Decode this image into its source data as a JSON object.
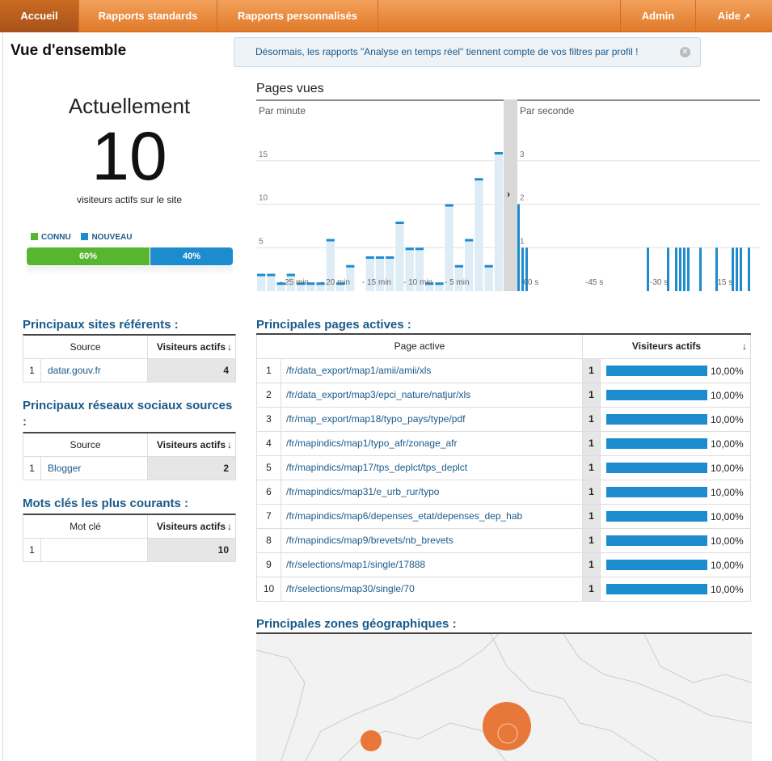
{
  "nav": {
    "home": "Accueil",
    "standard_reports": "Rapports standards",
    "custom_reports": "Rapports personnalisés",
    "admin": "Admin",
    "help": "Aide"
  },
  "page_title": "Vue d'ensemble",
  "notice": "Désormais, les rapports \"Analyse en temps réel\" tiennent compte de vos filtres par profil !",
  "realtime": {
    "title": "Actuellement",
    "count": "10",
    "subtitle": "visiteurs actifs sur le site",
    "legend_known": "CONNU",
    "legend_new": "NOUVEAU",
    "known_pct": "60%",
    "new_pct": "40%",
    "known_fraction": 0.6,
    "colors": {
      "known": "#58b530",
      "new": "#1d8ccf"
    }
  },
  "pageviews": {
    "title": "Pages vues",
    "per_minute_label": "Par minute",
    "per_second_label": "Par seconde"
  },
  "chart_data": [
    {
      "type": "bar",
      "title": "Par minute",
      "yticks": [
        "5",
        "10",
        "15"
      ],
      "ylim": [
        0,
        20
      ],
      "xticks": [
        "- 25 min",
        "- 20 min",
        "- 15 min",
        "- 10 min",
        "- 5 min"
      ],
      "values": [
        2,
        2,
        1,
        2,
        1,
        1,
        1,
        6,
        1,
        3,
        0,
        4,
        4,
        4,
        8,
        5,
        5,
        1,
        1,
        10,
        3,
        6,
        13,
        3,
        16
      ],
      "color": "#1d8ccf"
    },
    {
      "type": "bar",
      "title": "Par seconde",
      "yticks": [
        "1",
        "2",
        "3"
      ],
      "ylim": [
        0,
        4
      ],
      "xticks": [
        "-60 s",
        "-45 s",
        "-30 s",
        "-15 s"
      ],
      "values": [
        2,
        1,
        1,
        0,
        0,
        0,
        0,
        0,
        0,
        0,
        0,
        0,
        0,
        0,
        0,
        0,
        0,
        0,
        0,
        0,
        0,
        0,
        0,
        0,
        0,
        0,
        0,
        0,
        0,
        0,
        0,
        0,
        1,
        0,
        0,
        0,
        0,
        1,
        0,
        1,
        1,
        1,
        1,
        0,
        0,
        1,
        0,
        0,
        0,
        1,
        0,
        0,
        0,
        1,
        1,
        1,
        0,
        1,
        0,
        0
      ],
      "color": "#1d8ccf"
    }
  ],
  "referrers": {
    "title": "Principaux sites référents :",
    "col_source": "Source",
    "col_visitors": "Visiteurs actifs",
    "rows": [
      {
        "idx": "1",
        "source": "datar.gouv.fr",
        "value": "4"
      }
    ]
  },
  "social": {
    "title": "Principaux réseaux sociaux sources :",
    "col_source": "Source",
    "col_visitors": "Visiteurs actifs",
    "rows": [
      {
        "idx": "1",
        "source": "Blogger",
        "value": "2"
      }
    ]
  },
  "keywords": {
    "title": "Mots clés les plus courants :",
    "col_keyword": "Mot clé",
    "col_visitors": "Visiteurs actifs",
    "rows": [
      {
        "idx": "1",
        "source": "",
        "value": "10"
      }
    ]
  },
  "active_pages": {
    "title": "Principales pages actives :",
    "col_page": "Page active",
    "col_visitors": "Visiteurs actifs",
    "rows": [
      {
        "idx": "1",
        "page": "/fr/data_export/map1/amii/amii/xls",
        "count": "1",
        "pct": "10,00%"
      },
      {
        "idx": "2",
        "page": "/fr/data_export/map3/epci_nature/natjur/xls",
        "count": "1",
        "pct": "10,00%"
      },
      {
        "idx": "3",
        "page": "/fr/map_export/map18/typo_pays/type/pdf",
        "count": "1",
        "pct": "10,00%"
      },
      {
        "idx": "4",
        "page": "/fr/mapindics/map1/typo_afr/zonage_afr",
        "count": "1",
        "pct": "10,00%"
      },
      {
        "idx": "5",
        "page": "/fr/mapindics/map17/tps_deplct/tps_deplct",
        "count": "1",
        "pct": "10,00%"
      },
      {
        "idx": "6",
        "page": "/fr/mapindics/map31/e_urb_rur/typo",
        "count": "1",
        "pct": "10,00%"
      },
      {
        "idx": "7",
        "page": "/fr/mapindics/map6/depenses_etat/depenses_dep_hab",
        "count": "1",
        "pct": "10,00%"
      },
      {
        "idx": "8",
        "page": "/fr/mapindics/map9/brevets/nb_brevets",
        "count": "1",
        "pct": "10,00%"
      },
      {
        "idx": "9",
        "page": "/fr/selections/map1/single/17888",
        "count": "1",
        "pct": "10,00%"
      },
      {
        "idx": "10",
        "page": "/fr/selections/map30/single/70",
        "count": "1",
        "pct": "10,00%"
      }
    ]
  },
  "geo": {
    "title": "Principales zones géographiques :"
  }
}
